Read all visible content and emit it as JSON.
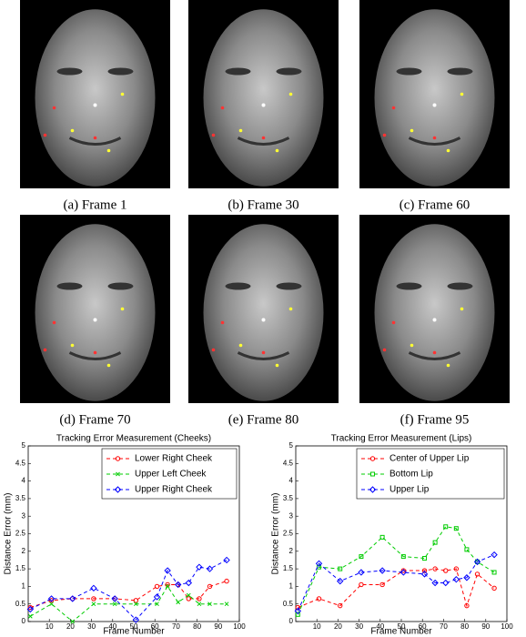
{
  "figure": {
    "panels": [
      {
        "caption": "(a) Frame 1"
      },
      {
        "caption": "(b) Frame 30"
      },
      {
        "caption": "(c) Frame 60"
      },
      {
        "caption": "(d) Frame 70"
      },
      {
        "caption": "(e) Frame 80"
      },
      {
        "caption": "(f) Frame 95"
      }
    ]
  },
  "chart_data": [
    {
      "type": "line",
      "title": "Tracking Error Measurement (Cheeks)",
      "xlabel": "Frame Number",
      "ylabel": "Distance Error (mm)",
      "x": [
        1,
        11,
        21,
        31,
        41,
        51,
        61,
        66,
        71,
        76,
        81,
        86,
        94
      ],
      "xlim": [
        0,
        100
      ],
      "xticks": [
        10,
        20,
        30,
        40,
        50,
        60,
        70,
        80,
        90,
        100
      ],
      "ylim": [
        0,
        5
      ],
      "yticks": [
        0,
        0.5,
        1,
        1.5,
        2,
        2.5,
        3,
        3.5,
        4,
        4.5,
        5
      ],
      "legend": "upper right",
      "series": [
        {
          "name": "Lower Right Cheek",
          "color": "#ff0000",
          "marker": "circle",
          "values": [
            0.4,
            0.6,
            0.65,
            0.65,
            0.65,
            0.6,
            1.0,
            1.05,
            1.05,
            0.65,
            0.65,
            1.0,
            1.15
          ]
        },
        {
          "name": "Upper Left Cheek",
          "color": "#00cc00",
          "marker": "x",
          "values": [
            0.15,
            0.5,
            0.0,
            0.5,
            0.5,
            0.5,
            0.5,
            1.0,
            0.55,
            0.75,
            0.5,
            0.5,
            0.5
          ]
        },
        {
          "name": "Upper Right Cheek",
          "color": "#0000ff",
          "marker": "diamond",
          "values": [
            0.35,
            0.65,
            0.65,
            0.95,
            0.65,
            0.05,
            0.7,
            1.45,
            1.05,
            1.1,
            1.55,
            1.5,
            1.75
          ]
        }
      ]
    },
    {
      "type": "line",
      "title": "Tracking Error Measurement (Lips)",
      "xlabel": "Frame Number",
      "ylabel": "Distance Error (mm)",
      "x": [
        1,
        11,
        21,
        31,
        41,
        51,
        61,
        66,
        71,
        76,
        81,
        86,
        94
      ],
      "xlim": [
        0,
        100
      ],
      "xticks": [
        10,
        20,
        30,
        40,
        50,
        60,
        70,
        80,
        90,
        100
      ],
      "ylim": [
        0,
        5
      ],
      "yticks": [
        0,
        0.5,
        1,
        1.5,
        2,
        2.5,
        3,
        3.5,
        4,
        4.5,
        5
      ],
      "legend": "upper right",
      "series": [
        {
          "name": "Center of Upper Lip",
          "color": "#ff0000",
          "marker": "circle",
          "values": [
            0.4,
            0.65,
            0.45,
            1.05,
            1.05,
            1.45,
            1.45,
            1.5,
            1.45,
            1.5,
            0.45,
            1.35,
            0.95
          ]
        },
        {
          "name": "Bottom Lip",
          "color": "#00cc00",
          "marker": "square",
          "values": [
            0.2,
            1.55,
            1.5,
            1.85,
            2.4,
            1.85,
            1.8,
            2.25,
            2.7,
            2.65,
            2.05,
            1.7,
            1.4
          ]
        },
        {
          "name": "Upper Lip",
          "color": "#0000ff",
          "marker": "diamond",
          "values": [
            0.3,
            1.65,
            1.15,
            1.4,
            1.45,
            1.4,
            1.35,
            1.1,
            1.1,
            1.2,
            1.25,
            1.7,
            1.9
          ]
        }
      ]
    }
  ]
}
